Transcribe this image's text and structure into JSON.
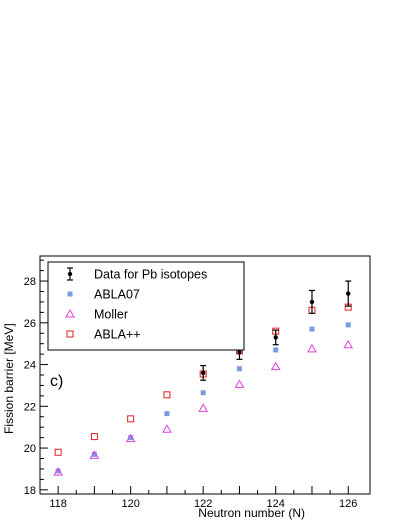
{
  "chart_data": {
    "type": "scatter",
    "xlabel": "Neutron number (N)",
    "ylabel": "Fission barrier [MeV]",
    "xlim": [
      117.5,
      126.6
    ],
    "ylim": [
      17.8,
      29.2
    ],
    "x_ticks": [
      118,
      120,
      122,
      124,
      126
    ],
    "y_ticks": [
      18,
      20,
      22,
      24,
      26,
      28
    ],
    "panel_label": "c)",
    "legend_position": "top-left",
    "series": [
      {
        "name": "Data for Pb isotopes",
        "marker": "filled-circle-errorbar",
        "color": "#000000",
        "points": [
          {
            "x": 122,
            "y": 23.6,
            "err": 0.35
          },
          {
            "x": 123,
            "y": 24.6,
            "err": 0.35
          },
          {
            "x": 124,
            "y": 25.3,
            "err": 0.35
          },
          {
            "x": 125,
            "y": 27.0,
            "err": 0.55
          },
          {
            "x": 126,
            "y": 27.4,
            "err": 0.6
          }
        ]
      },
      {
        "name": "ABLA07",
        "marker": "filled-square",
        "color": "#7b9be0",
        "points": [
          {
            "x": 118,
            "y": 18.9
          },
          {
            "x": 119,
            "y": 19.7
          },
          {
            "x": 120,
            "y": 20.5
          },
          {
            "x": 121,
            "y": 21.65
          },
          {
            "x": 122,
            "y": 22.65
          },
          {
            "x": 123,
            "y": 23.8
          },
          {
            "x": 124,
            "y": 24.7
          },
          {
            "x": 125,
            "y": 25.7
          },
          {
            "x": 126,
            "y": 25.9
          }
        ]
      },
      {
        "name": "Moller",
        "marker": "open-triangle",
        "color": "#e040e0",
        "points": [
          {
            "x": 118,
            "y": 18.85
          },
          {
            "x": 119,
            "y": 19.65
          },
          {
            "x": 120,
            "y": 20.45
          },
          {
            "x": 121,
            "y": 20.9
          },
          {
            "x": 122,
            "y": 21.9
          },
          {
            "x": 123,
            "y": 23.05
          },
          {
            "x": 124,
            "y": 23.9
          },
          {
            "x": 125,
            "y": 24.75
          },
          {
            "x": 126,
            "y": 24.95
          }
        ]
      },
      {
        "name": "ABLA++",
        "marker": "open-square",
        "color": "#e02020",
        "points": [
          {
            "x": 118,
            "y": 19.8
          },
          {
            "x": 119,
            "y": 20.55
          },
          {
            "x": 120,
            "y": 21.4
          },
          {
            "x": 121,
            "y": 22.55
          },
          {
            "x": 122,
            "y": 23.55
          },
          {
            "x": 123,
            "y": 24.65
          },
          {
            "x": 124,
            "y": 25.6
          },
          {
            "x": 125,
            "y": 26.6
          },
          {
            "x": 126,
            "y": 26.75
          }
        ]
      }
    ]
  }
}
